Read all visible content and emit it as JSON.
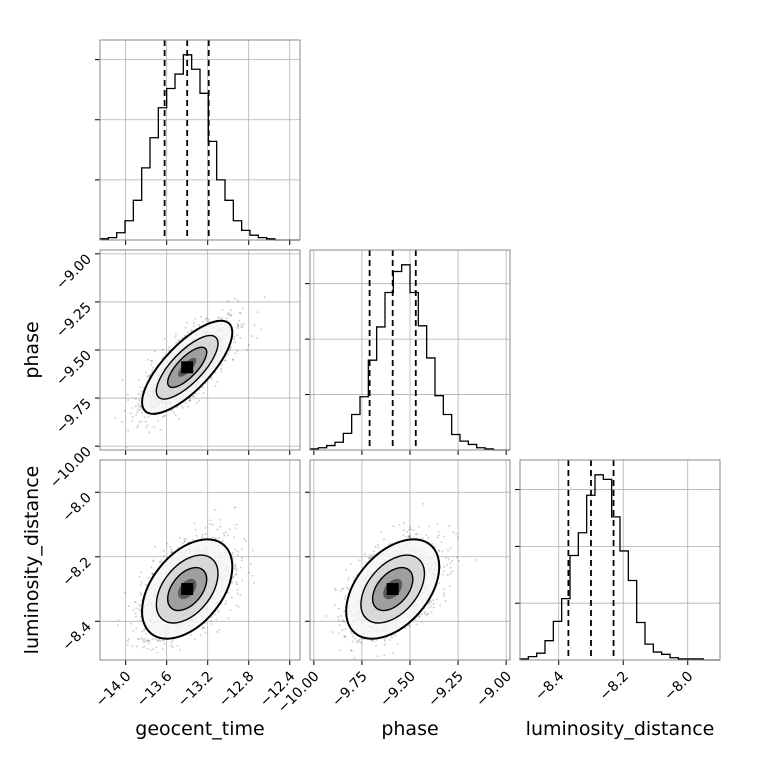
{
  "chart_data": {
    "type": "corner",
    "parameters": [
      {
        "name": "geocent_time",
        "label": "geocent_time",
        "ticks": [
          -14.0,
          -13.6,
          -13.2,
          -12.8,
          -12.4
        ],
        "tick_labels": [
          "−14.0",
          "−13.6",
          "−13.2",
          "−12.8",
          "−12.4"
        ],
        "range": [
          -14.25,
          -12.3
        ],
        "quantiles": [
          -13.62,
          -13.4,
          -13.19
        ],
        "mean": -13.4,
        "sd": 0.2
      },
      {
        "name": "phase",
        "label": "phase",
        "ticks": [
          -10.0,
          -9.75,
          -9.5,
          -9.25,
          -9.0
        ],
        "tick_labels": [
          "−10.00",
          "−9.75",
          "−9.50",
          "−9.25",
          "−9.00"
        ],
        "range": [
          -10.02,
          -8.98
        ],
        "quantiles": [
          -9.71,
          -9.59,
          -9.47
        ],
        "mean": -9.59,
        "sd": 0.11
      },
      {
        "name": "luminosity_distance",
        "label": "luminosity_distance",
        "ticks": [
          -8.4,
          -8.2,
          -8.0
        ],
        "tick_labels": [
          "−8.4",
          "−8.2",
          "−8.0"
        ],
        "range": [
          -8.52,
          -7.9
        ],
        "quantiles": [
          -8.37,
          -8.3,
          -8.23
        ],
        "mean": -8.3,
        "sd": 0.07
      }
    ],
    "histograms": [
      {
        "parameter": "geocent_time",
        "counts": [
          1,
          2,
          6,
          16,
          33,
          60,
          85,
          110,
          126,
          138,
          154,
          142,
          122,
          82,
          50,
          33,
          16,
          8,
          4,
          2,
          1,
          0,
          0,
          0
        ],
        "bins": 24
      },
      {
        "parameter": "phase",
        "counts": [
          1,
          2,
          4,
          7,
          15,
          32,
          48,
          81,
          111,
          142,
          161,
          167,
          142,
          112,
          83,
          49,
          32,
          14,
          8,
          5,
          2,
          1,
          0,
          0
        ],
        "bins": 24
      },
      {
        "parameter": "luminosity_distance",
        "counts": [
          1,
          3,
          6,
          17,
          34,
          54,
          92,
          112,
          145,
          163,
          159,
          126,
          96,
          70,
          33,
          14,
          7,
          5,
          2,
          1,
          1,
          1,
          0,
          0
        ],
        "bins": 24
      }
    ],
    "contour_levels": [
      0.39,
      0.86,
      0.99
    ],
    "grid": true
  }
}
